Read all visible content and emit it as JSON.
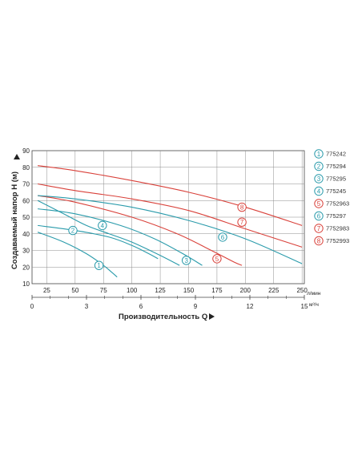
{
  "chart_data": {
    "type": "line",
    "xlabel": "Производительность Q",
    "ylabel": "Создаваемый напор H (м)",
    "x_unit_top": "л/мин",
    "x_unit_bottom": "м³/ч",
    "xlim": [
      12,
      252
    ],
    "ylim": [
      10,
      90
    ],
    "x_ticks_top": [
      "25",
      "50",
      "75",
      "100",
      "125",
      "150",
      "175",
      "200",
      "225",
      "250"
    ],
    "x_ticks_bottom": [
      "0",
      "3",
      "6",
      "9",
      "12",
      "15"
    ],
    "y_ticks": [
      "10",
      "20",
      "30",
      "40",
      "50",
      "60",
      "70",
      "80",
      "90"
    ],
    "grid": true,
    "legend_position": "right",
    "colors": {
      "teal": "#2a9bab",
      "red": "#d9413a",
      "grid": "#8c8c8c"
    },
    "series": [
      {
        "name": "775242",
        "label": "1",
        "color": "#2a9bab",
        "x": [
          17,
          40,
          60,
          75,
          82,
          87
        ],
        "y": [
          41,
          35,
          28,
          21,
          17,
          14
        ],
        "marker": [
          71,
          21
        ]
      },
      {
        "name": "775294",
        "label": "2",
        "color": "#2a9bab",
        "x": [
          17,
          50,
          80,
          100,
          115,
          123
        ],
        "y": [
          45,
          42,
          38,
          33,
          28,
          25
        ],
        "marker": [
          48,
          42
        ]
      },
      {
        "name": "775295",
        "label": "3",
        "color": "#2a9bab",
        "x": [
          17,
          50,
          90,
          120,
          145,
          162
        ],
        "y": [
          55,
          52,
          45,
          37,
          28,
          21
        ],
        "marker": [
          148,
          24
        ]
      },
      {
        "name": "775245",
        "label": "4",
        "color": "#2a9bab",
        "x": [
          17,
          40,
          60,
          80,
          100,
          125,
          142
        ],
        "y": [
          60,
          52,
          45,
          40,
          35,
          27,
          21
        ],
        "marker": [
          74,
          45
        ]
      },
      {
        "name": "7752963",
        "label": "5",
        "color": "#d9413a",
        "x": [
          17,
          50,
          100,
          140,
          170,
          190,
          197
        ],
        "y": [
          63,
          59,
          50,
          40,
          30,
          23,
          21
        ],
        "marker": [
          175,
          25
        ]
      },
      {
        "name": "775297",
        "label": "6",
        "color": "#2a9bab",
        "x": [
          17,
          50,
          100,
          150,
          200,
          250
        ],
        "y": [
          63,
          61,
          56,
          48,
          37,
          22
        ],
        "marker": [
          180,
          38
        ]
      },
      {
        "name": "7752983",
        "label": "7",
        "color": "#d9413a",
        "x": [
          17,
          50,
          100,
          150,
          200,
          250
        ],
        "y": [
          70,
          66,
          61,
          54,
          43,
          32
        ],
        "marker": [
          197,
          47
        ]
      },
      {
        "name": "7752993",
        "label": "8",
        "color": "#d9413a",
        "x": [
          17,
          50,
          100,
          150,
          200,
          250
        ],
        "y": [
          81,
          78,
          72,
          65,
          56,
          45
        ],
        "marker": [
          197,
          56
        ]
      }
    ]
  }
}
